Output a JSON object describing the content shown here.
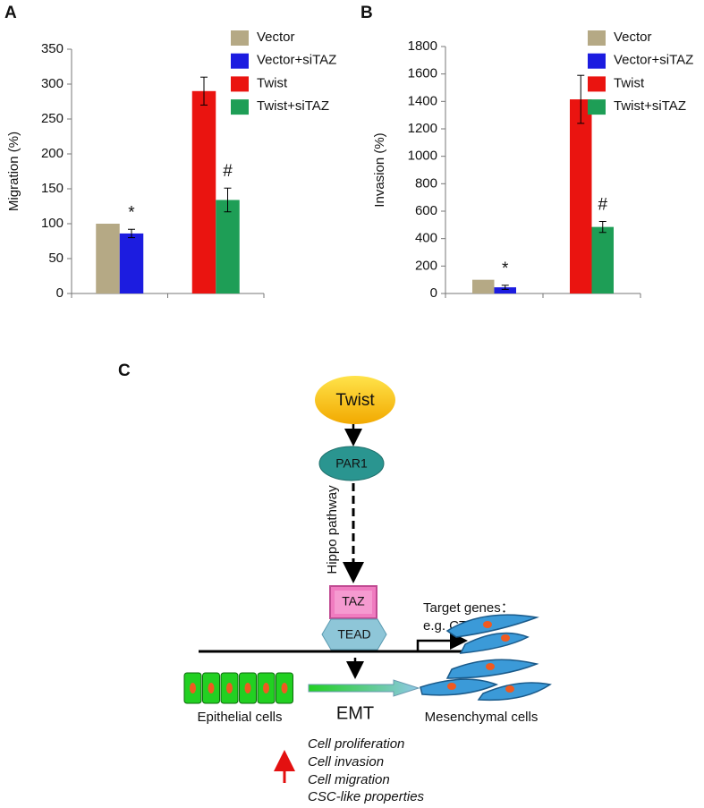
{
  "chart_data": [
    {
      "type": "bar",
      "panel": "A",
      "y_label": "Migration (%)",
      "categories": [
        null,
        null
      ],
      "series": [
        {
          "name": "Vector",
          "color": "#b5a985",
          "values": [
            100,
            null
          ],
          "errors": [
            null,
            null
          ]
        },
        {
          "name": "Vector+siTAZ",
          "color": "#1c1ce0",
          "values": [
            86,
            null
          ],
          "errors": [
            6,
            null
          ]
        },
        {
          "name": "Twist",
          "color": "#ea1410",
          "values": [
            null,
            290
          ],
          "errors": [
            null,
            20
          ]
        },
        {
          "name": "Twist+siTAZ",
          "color": "#1e9e56",
          "values": [
            null,
            134
          ],
          "errors": [
            null,
            17
          ]
        }
      ],
      "annotations": [
        "*",
        "#"
      ],
      "ylim": [
        0,
        350
      ],
      "yticks": [
        0,
        50,
        100,
        150,
        200,
        250,
        300,
        350
      ]
    },
    {
      "type": "bar",
      "panel": "B",
      "y_label": "Invasion (%)",
      "categories": [
        null,
        null
      ],
      "series": [
        {
          "name": "Vector",
          "color": "#b5a985",
          "values": [
            100,
            null
          ],
          "errors": [
            null,
            null
          ]
        },
        {
          "name": "Vector+siTAZ",
          "color": "#1c1ce0",
          "values": [
            45,
            null
          ],
          "errors": [
            15,
            null
          ]
        },
        {
          "name": "Twist",
          "color": "#ea1410",
          "values": [
            null,
            1415
          ],
          "errors": [
            null,
            175
          ]
        },
        {
          "name": "Twist+siTAZ",
          "color": "#1e9e56",
          "values": [
            null,
            485
          ],
          "errors": [
            null,
            40
          ]
        }
      ],
      "annotations": [
        "*",
        "#"
      ],
      "ylim": [
        0,
        1800
      ],
      "yticks": [
        0,
        200,
        400,
        600,
        800,
        1000,
        1200,
        1400,
        1600,
        1800
      ]
    }
  ],
  "diagram": {
    "panel": "C",
    "twist": "Twist",
    "par1": "PAR1",
    "pathway": "Hippo pathway",
    "taz": "TAZ",
    "tead": "TEAD",
    "target_genes": "Target genes：",
    "target_example": "e.g. CTGF",
    "epithelial": "Epithelial cells",
    "emt": "EMT",
    "mesenchymal": "Mesenchymal cells",
    "effects": [
      "Cell proliferation",
      "Cell invasion",
      "Cell migration",
      "CSC-like properties"
    ]
  }
}
